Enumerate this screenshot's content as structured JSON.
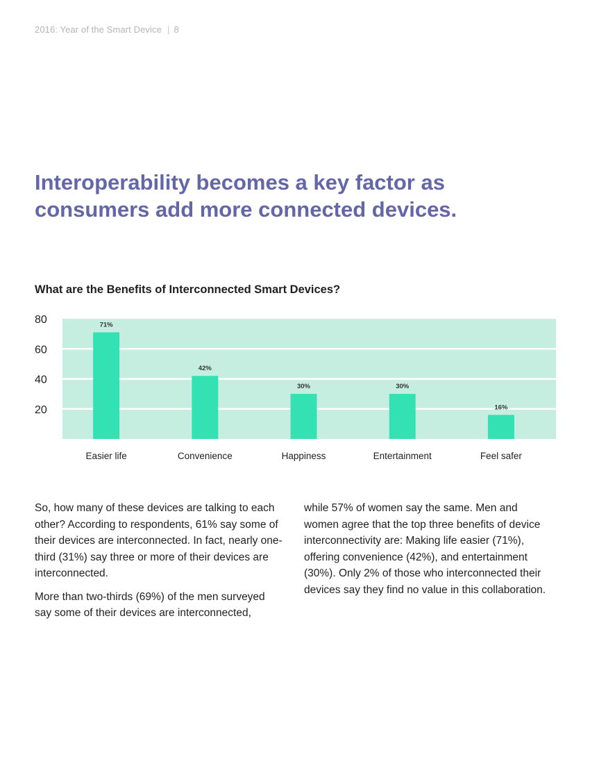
{
  "header": {
    "doc_title": "2016: Year of the Smart Device",
    "separator": "|",
    "page_number": "8"
  },
  "title_line1": "Interoperability becomes a key factor as",
  "title_line2": "consumers add more connected devices.",
  "chart_data": {
    "type": "bar",
    "title": "What are the Benefits of Interconnected Smart Devices?",
    "categories": [
      "Easier life",
      "Convenience",
      "Happiness",
      "Entertainment",
      "Feel safer"
    ],
    "values": [
      71,
      42,
      30,
      30,
      16
    ],
    "data_labels": [
      "71%",
      "42%",
      "30%",
      "30%",
      "16%"
    ],
    "y_ticks": [
      20,
      40,
      60,
      80
    ],
    "ylim": [
      0,
      80
    ],
    "grid": true,
    "legend": "none",
    "bar_color": "#33e1b2",
    "background_color": "#c6eee0"
  },
  "body": {
    "left_col": [
      "So, how many of these devices are talking to each other? According to respondents, 61% say some of their devices are interconnected. In fact, nearly one-third (31%) say three or more of their devices are interconnected.",
      "More than two-thirds (69%) of the men surveyed say some of their devices are interconnected,"
    ],
    "right_col": [
      "while 57% of women say the same. Men and women agree that the top three benefits of device interconnectivity are: Making life easier (71%), offering convenience (42%), and entertainment (30%). Only 2% of those who interconnected their devices say they find no value in this collaboration."
    ]
  },
  "colors": {
    "title": "#6366a8",
    "header": "#b5b5b5",
    "text": "#222222"
  }
}
